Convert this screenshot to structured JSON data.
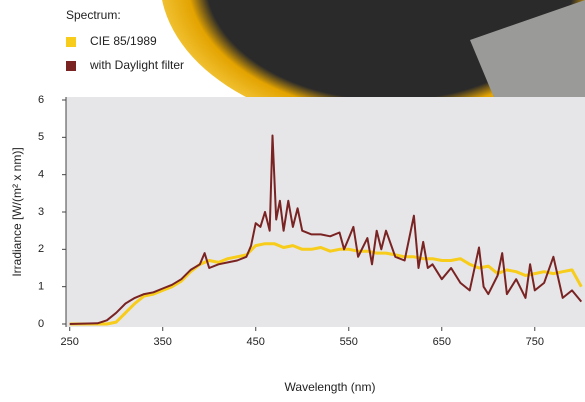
{
  "chart_data": {
    "type": "line",
    "legend_title": "Spectrum:",
    "xlabel": "Wavelength (nm)",
    "ylabel": "Irradiance [W/(m² x nm)]",
    "xlim": [
      246,
      804
    ],
    "ylim": [
      0,
      6
    ],
    "xticks": [
      250,
      350,
      450,
      550,
      650,
      750
    ],
    "yticks": [
      0,
      1,
      2,
      3,
      4,
      5,
      6
    ],
    "series": [
      {
        "name": "CIE 85/1989",
        "color": "#f7cc1a",
        "x": [
          250,
          290,
          300,
          310,
          320,
          330,
          340,
          350,
          360,
          370,
          380,
          390,
          400,
          410,
          420,
          430,
          440,
          450,
          460,
          470,
          480,
          490,
          500,
          510,
          520,
          530,
          540,
          550,
          560,
          570,
          580,
          590,
          600,
          610,
          620,
          630,
          640,
          650,
          660,
          670,
          680,
          690,
          700,
          710,
          720,
          730,
          740,
          750,
          760,
          770,
          780,
          790,
          800
        ],
        "values": [
          0,
          0,
          0.05,
          0.3,
          0.55,
          0.75,
          0.8,
          0.9,
          1.0,
          1.15,
          1.4,
          1.6,
          1.7,
          1.65,
          1.75,
          1.8,
          1.85,
          2.1,
          2.15,
          2.15,
          2.05,
          2.1,
          2.0,
          2.0,
          2.05,
          1.95,
          2.0,
          2.0,
          1.95,
          1.95,
          1.9,
          1.9,
          1.85,
          1.8,
          1.8,
          1.75,
          1.75,
          1.7,
          1.7,
          1.75,
          1.6,
          1.5,
          1.55,
          1.35,
          1.45,
          1.4,
          1.3,
          1.35,
          1.4,
          1.35,
          1.4,
          1.45,
          1.0
        ]
      },
      {
        "name": "with Daylight filter",
        "color": "#7a2323",
        "x": [
          250,
          280,
          290,
          300,
          310,
          320,
          330,
          340,
          350,
          360,
          370,
          380,
          390,
          395,
          400,
          410,
          420,
          430,
          440,
          445,
          450,
          455,
          460,
          465,
          468,
          472,
          476,
          480,
          485,
          490,
          495,
          500,
          510,
          520,
          530,
          540,
          545,
          550,
          555,
          560,
          570,
          575,
          580,
          585,
          590,
          600,
          610,
          620,
          625,
          630,
          635,
          640,
          650,
          660,
          670,
          680,
          690,
          695,
          700,
          710,
          715,
          720,
          730,
          740,
          745,
          750,
          760,
          770,
          780,
          790,
          800
        ],
        "values": [
          0,
          0.02,
          0.1,
          0.3,
          0.55,
          0.7,
          0.8,
          0.85,
          0.95,
          1.05,
          1.2,
          1.45,
          1.6,
          1.9,
          1.5,
          1.6,
          1.65,
          1.7,
          1.8,
          2.1,
          2.7,
          2.6,
          3.0,
          2.5,
          5.05,
          2.8,
          3.3,
          2.5,
          3.3,
          2.6,
          3.1,
          2.5,
          2.4,
          2.4,
          2.35,
          2.45,
          2.0,
          2.3,
          2.6,
          1.8,
          2.3,
          1.6,
          2.5,
          2.0,
          2.5,
          1.8,
          1.7,
          2.9,
          1.5,
          2.2,
          1.5,
          1.6,
          1.2,
          1.5,
          1.1,
          0.9,
          2.05,
          1.0,
          0.8,
          1.3,
          1.9,
          0.8,
          1.2,
          0.7,
          1.6,
          0.9,
          1.1,
          1.8,
          0.7,
          0.9,
          0.6
        ]
      }
    ]
  }
}
